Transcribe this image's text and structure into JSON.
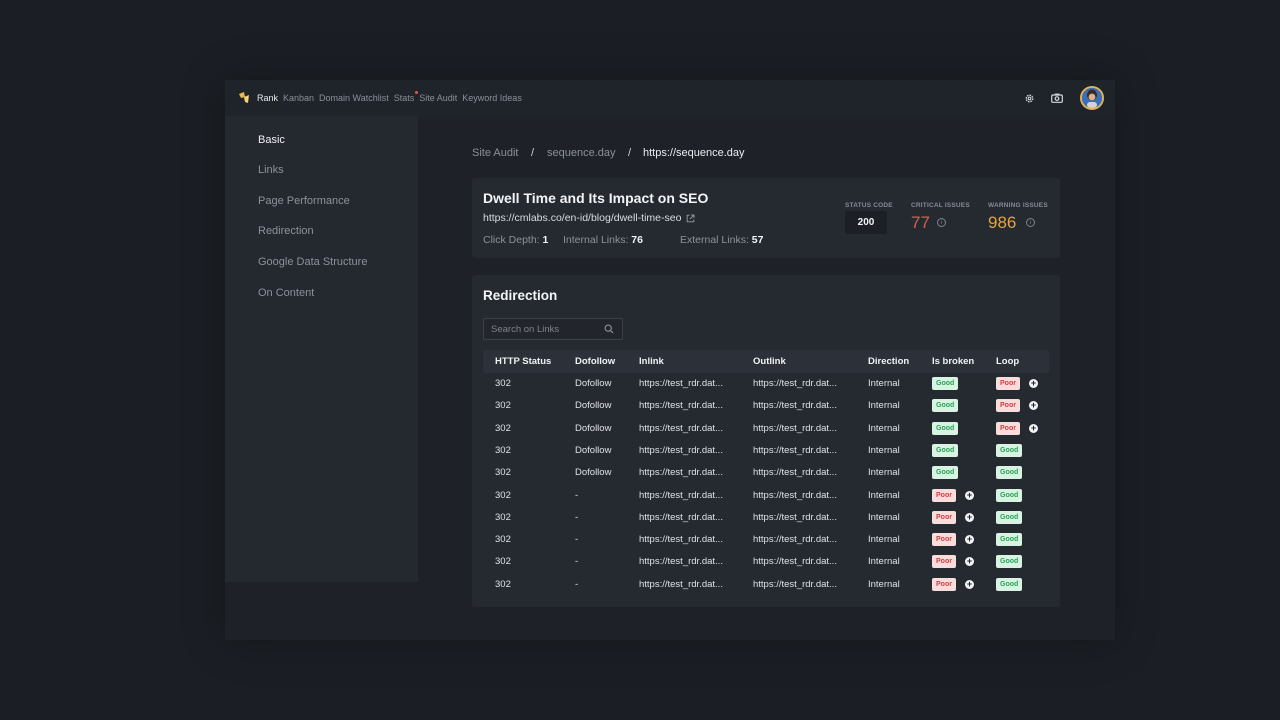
{
  "nav": {
    "items": [
      {
        "label": "Rank",
        "active": true,
        "dot": false
      },
      {
        "label": "Kanban",
        "active": false,
        "dot": false
      },
      {
        "label": "Domain Watchlist",
        "active": false,
        "dot": false
      },
      {
        "label": "Stats",
        "active": false,
        "dot": true
      },
      {
        "label": "Site Audit",
        "active": false,
        "dot": false
      },
      {
        "label": "Keyword Ideas",
        "active": false,
        "dot": false
      }
    ],
    "icons": [
      "gear-icon",
      "camera-icon",
      "avatar"
    ]
  },
  "sidebar": {
    "items": [
      {
        "label": "Basic",
        "active": true
      },
      {
        "label": "Links",
        "active": false
      },
      {
        "label": "Page Performance",
        "active": false
      },
      {
        "label": "Redirection",
        "active": false
      },
      {
        "label": "Google Data Structure",
        "active": false
      },
      {
        "label": "On Content",
        "active": false
      }
    ]
  },
  "breadcrumb": {
    "items": [
      "Site Audit",
      "sequence.day",
      "https://sequence.day"
    ],
    "separator": "/"
  },
  "page": {
    "title": "Dwell Time and Its Impact on SEO",
    "url": "https://cmlabs.co/en-id/blog/dwell-time-seo",
    "click_depth_label": "Click Depth:",
    "click_depth": "1",
    "internal_links_label": "Internal Links:",
    "internal_links": "76",
    "external_links_label": "External Links:",
    "external_links": "57"
  },
  "stats": {
    "status_code_label": "STATUS CODE",
    "status_code": "200",
    "critical_label": "CRITICAL ISSUES",
    "critical": "77",
    "warning_label": "WARNING ISSUES",
    "warning": "986",
    "critical_color": "#e4584c",
    "warning_color": "#e6a53e"
  },
  "redirection": {
    "title": "Redirection",
    "search_placeholder": "Search on Links",
    "columns": [
      "HTTP Status",
      "Dofollow",
      "Inlink",
      "Outlink",
      "Direction",
      "Is broken",
      "Loop"
    ],
    "rows": [
      {
        "status": "302",
        "dofollow": "Dofollow",
        "inlink": "https://test_rdr.dat...",
        "outlink": "https://test_rdr.dat...",
        "direction": "Internal",
        "is_broken": "Good",
        "loop": "Poor"
      },
      {
        "status": "302",
        "dofollow": "Dofollow",
        "inlink": "https://test_rdr.dat...",
        "outlink": "https://test_rdr.dat...",
        "direction": "Internal",
        "is_broken": "Good",
        "loop": "Poor"
      },
      {
        "status": "302",
        "dofollow": "Dofollow",
        "inlink": "https://test_rdr.dat...",
        "outlink": "https://test_rdr.dat...",
        "direction": "Internal",
        "is_broken": "Good",
        "loop": "Poor"
      },
      {
        "status": "302",
        "dofollow": "Dofollow",
        "inlink": "https://test_rdr.dat...",
        "outlink": "https://test_rdr.dat...",
        "direction": "Internal",
        "is_broken": "Good",
        "loop": "Good"
      },
      {
        "status": "302",
        "dofollow": "Dofollow",
        "inlink": "https://test_rdr.dat...",
        "outlink": "https://test_rdr.dat...",
        "direction": "Internal",
        "is_broken": "Good",
        "loop": "Good"
      },
      {
        "status": "302",
        "dofollow": "-",
        "inlink": "https://test_rdr.dat...",
        "outlink": "https://test_rdr.dat...",
        "direction": "Internal",
        "is_broken": "Poor",
        "loop": "Good"
      },
      {
        "status": "302",
        "dofollow": "-",
        "inlink": "https://test_rdr.dat...",
        "outlink": "https://test_rdr.dat...",
        "direction": "Internal",
        "is_broken": "Poor",
        "loop": "Good"
      },
      {
        "status": "302",
        "dofollow": "-",
        "inlink": "https://test_rdr.dat...",
        "outlink": "https://test_rdr.dat...",
        "direction": "Internal",
        "is_broken": "Poor",
        "loop": "Good"
      },
      {
        "status": "302",
        "dofollow": "-",
        "inlink": "https://test_rdr.dat...",
        "outlink": "https://test_rdr.dat...",
        "direction": "Internal",
        "is_broken": "Poor",
        "loop": "Good"
      },
      {
        "status": "302",
        "dofollow": "-",
        "inlink": "https://test_rdr.dat...",
        "outlink": "https://test_rdr.dat...",
        "direction": "Internal",
        "is_broken": "Poor",
        "loop": "Good"
      }
    ]
  }
}
